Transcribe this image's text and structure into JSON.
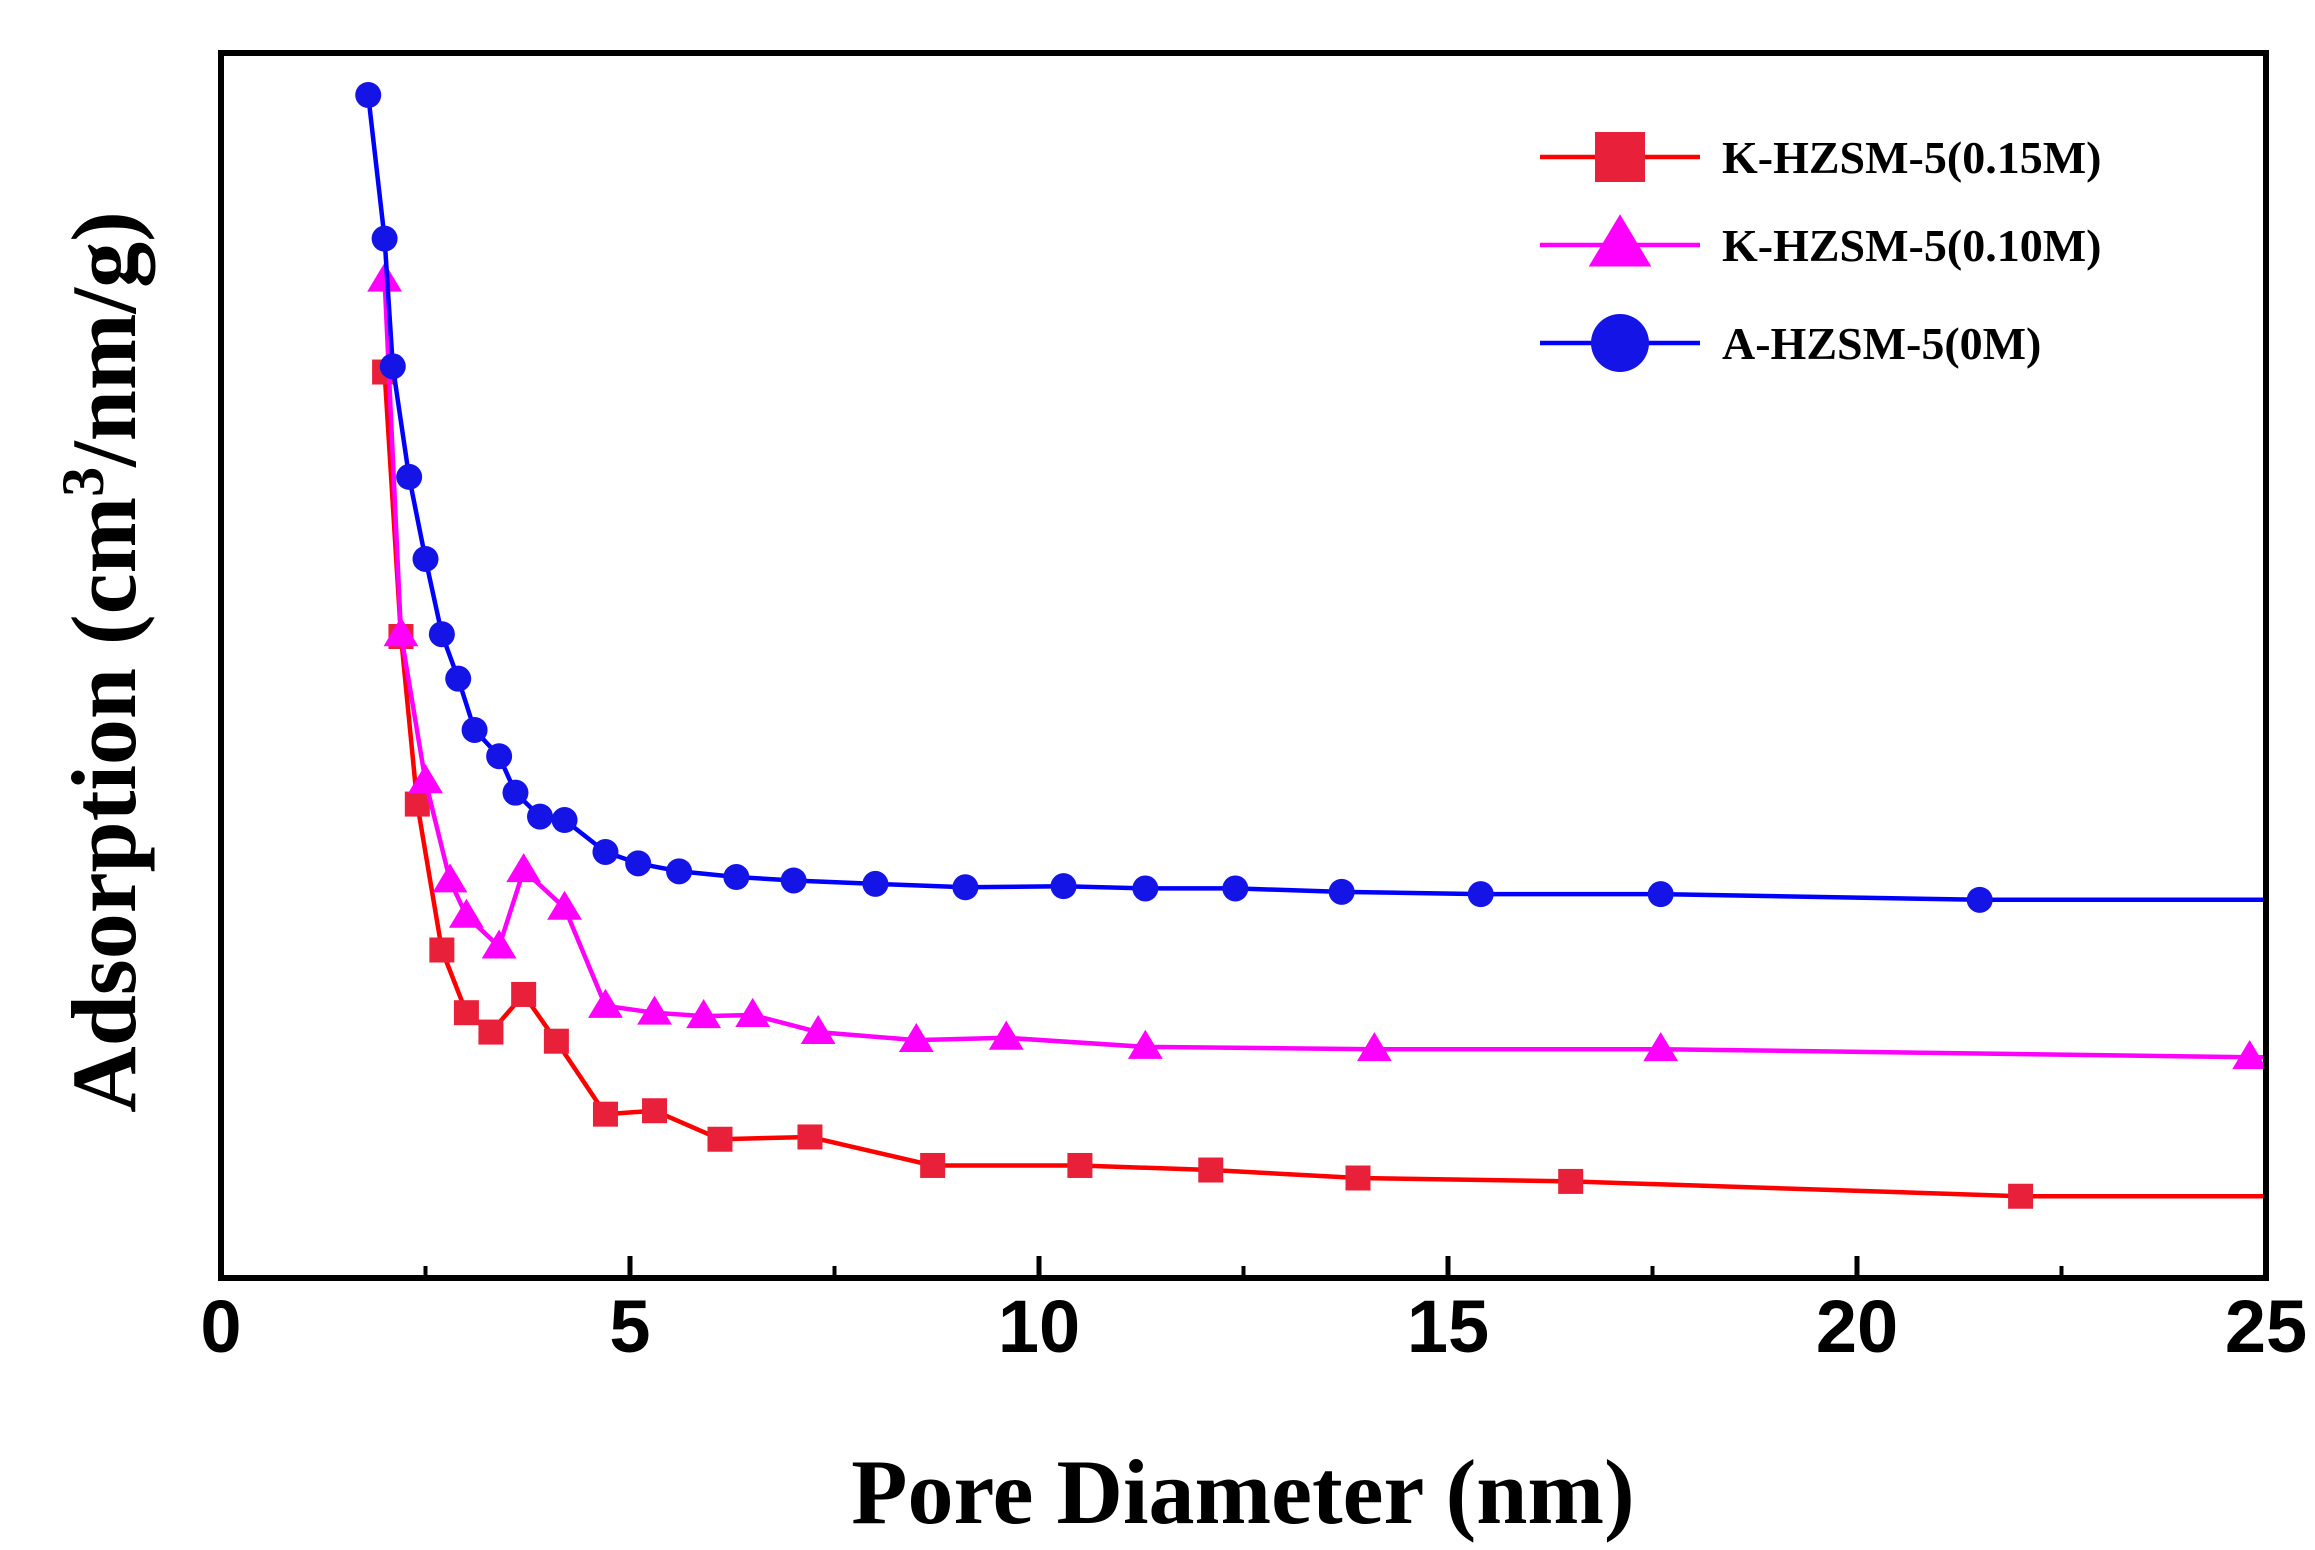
{
  "chart_data": {
    "type": "line",
    "title": "",
    "xlabel": "Pore Diameter (nm)",
    "ylabel_parts": {
      "pre": "Adsorption (cm",
      "sup": "3",
      "post": "/nm/g)"
    },
    "xlim": [
      0,
      25
    ],
    "ylim": [
      0,
      1
    ],
    "xticks": [
      0,
      5,
      10,
      15,
      20,
      25
    ],
    "xtick_labels": [
      "0",
      "5",
      "10",
      "15",
      "20",
      "25"
    ],
    "grid": false,
    "legend_position": "top-right",
    "series": [
      {
        "name": "K-HZSM-5(0.15M)",
        "color": "#ff0000",
        "marker_color": "#e8203a",
        "marker": "square",
        "x": [
          2.0,
          2.2,
          2.4,
          2.7,
          3.0,
          3.3,
          3.7,
          4.1,
          4.7,
          5.3,
          6.1,
          7.2,
          8.7,
          10.5,
          12.1,
          13.9,
          16.5,
          22.0,
          25.0
        ],
        "y": [
          0.757,
          0.525,
          0.378,
          0.25,
          0.195,
          0.178,
          0.211,
          0.17,
          0.106,
          0.109,
          0.084,
          0.086,
          0.061,
          0.061,
          0.057,
          0.05,
          0.047,
          0.034,
          0.034
        ]
      },
      {
        "name": "K-HZSM-5(0.10M)",
        "color": "#ff00ff",
        "marker_color": "#ff00ff",
        "marker": "triangle",
        "x": [
          2.0,
          2.2,
          2.5,
          2.8,
          3.0,
          3.4,
          3.7,
          4.2,
          4.7,
          5.3,
          5.9,
          6.5,
          7.3,
          8.5,
          9.6,
          11.3,
          14.1,
          17.6,
          24.8,
          25.0
        ],
        "y": [
          0.838,
          0.527,
          0.398,
          0.311,
          0.28,
          0.253,
          0.32,
          0.287,
          0.201,
          0.195,
          0.192,
          0.193,
          0.178,
          0.171,
          0.173,
          0.165,
          0.163,
          0.163,
          0.156,
          0.156
        ]
      },
      {
        "name": "A-HZSM-5(0M)",
        "color": "#0000ff",
        "marker_color": "#1414e6",
        "marker": "circle",
        "x": [
          1.8,
          2.0,
          2.1,
          2.3,
          2.5,
          2.7,
          2.9,
          3.1,
          3.4,
          3.6,
          3.9,
          4.2,
          4.7,
          5.1,
          5.6,
          6.3,
          7.0,
          8.0,
          9.1,
          10.3,
          11.3,
          12.4,
          13.7,
          15.4,
          17.6,
          21.5,
          25.0
        ],
        "y": [
          1.0,
          0.874,
          0.762,
          0.665,
          0.593,
          0.527,
          0.488,
          0.443,
          0.42,
          0.388,
          0.367,
          0.364,
          0.336,
          0.326,
          0.319,
          0.314,
          0.311,
          0.308,
          0.305,
          0.306,
          0.304,
          0.304,
          0.301,
          0.299,
          0.299,
          0.294,
          0.294
        ]
      }
    ]
  }
}
